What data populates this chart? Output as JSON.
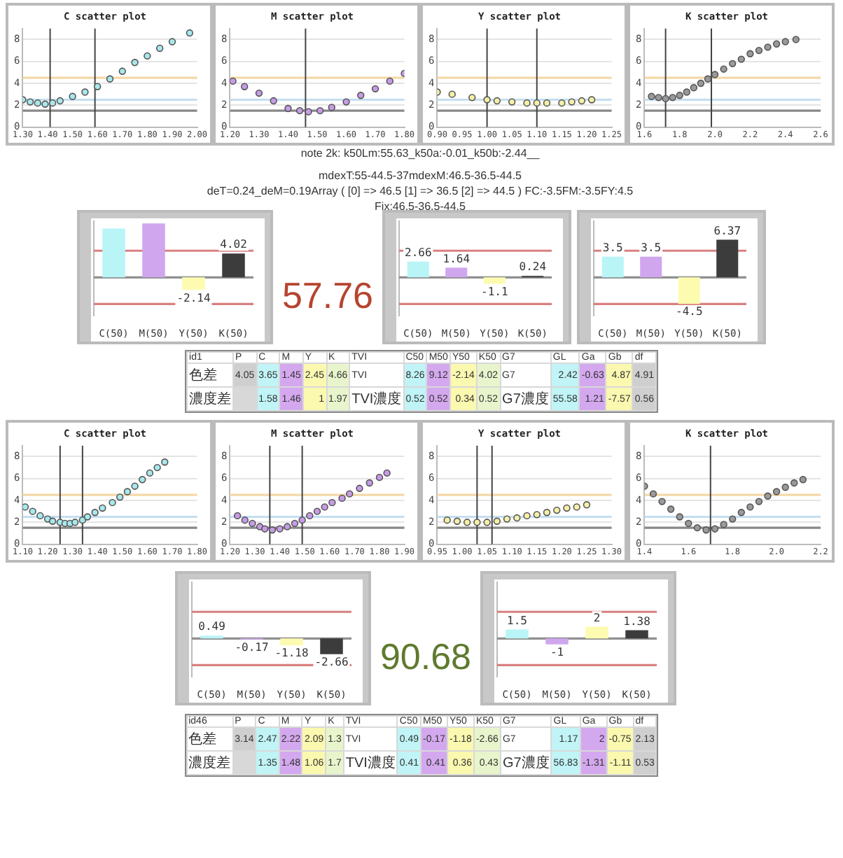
{
  "chart_data": [
    {
      "type": "scatter",
      "title": "C scatter plot",
      "x": [
        1.3,
        1.33,
        1.36,
        1.39,
        1.42,
        1.45,
        1.5,
        1.55,
        1.6,
        1.65,
        1.7,
        1.75,
        1.8,
        1.85,
        1.9,
        1.97
      ],
      "values": [
        2.5,
        2.3,
        2.2,
        2.1,
        2.2,
        2.4,
        2.8,
        3.2,
        3.7,
        4.4,
        5.1,
        5.9,
        6.5,
        7.2,
        7.8,
        8.6
      ],
      "color": "#a8e8ec",
      "marker": "circle",
      "grid": "y",
      "xlim": [
        1.3,
        2.0
      ],
      "xticks": [
        {
          "value": 1.3,
          "label": "1.30"
        },
        {
          "value": 1.4,
          "label": "1.40"
        },
        {
          "value": 1.5,
          "label": "1.50"
        },
        {
          "value": 1.6,
          "label": "1.60"
        },
        {
          "value": 1.7,
          "label": "1.70"
        },
        {
          "value": 1.8,
          "label": "1.80"
        },
        {
          "value": 1.9,
          "label": "1.90"
        },
        {
          "value": 2.0,
          "label": "2.00"
        }
      ],
      "ylim": [
        0,
        9
      ],
      "yticks": [
        0,
        2,
        4,
        6,
        8
      ],
      "ref_lines": [
        {
          "axis": "y",
          "value": 4.5,
          "color": "#f5d9a8"
        },
        {
          "axis": "y",
          "value": 2.5,
          "color": "#c4def0"
        },
        {
          "axis": "y",
          "value": 1.5,
          "color": "#888888"
        },
        {
          "axis": "x",
          "value": 1.41,
          "color": "#444444"
        },
        {
          "axis": "x",
          "value": 1.59,
          "color": "#444444"
        }
      ]
    },
    {
      "type": "scatter",
      "title": "M scatter plot",
      "x": [
        1.21,
        1.25,
        1.3,
        1.35,
        1.4,
        1.44,
        1.47,
        1.51,
        1.55,
        1.6,
        1.65,
        1.7,
        1.75,
        1.8
      ],
      "values": [
        4.2,
        3.7,
        3.1,
        2.4,
        1.7,
        1.5,
        1.4,
        1.5,
        1.8,
        2.3,
        2.9,
        3.5,
        4.2,
        4.9
      ],
      "color": "#c79be6",
      "marker": "circle",
      "grid": "y",
      "xlim": [
        1.2,
        1.8
      ],
      "xticks": [
        {
          "value": 1.2,
          "label": "1.20"
        },
        {
          "value": 1.3,
          "label": "1.30"
        },
        {
          "value": 1.4,
          "label": "1.40"
        },
        {
          "value": 1.5,
          "label": "1.50"
        },
        {
          "value": 1.6,
          "label": "1.60"
        },
        {
          "value": 1.7,
          "label": "1.70"
        },
        {
          "value": 1.8,
          "label": "1.80"
        }
      ],
      "ylim": [
        0,
        9
      ],
      "yticks": [
        0,
        2,
        4,
        6,
        8
      ],
      "ref_lines": [
        {
          "axis": "y",
          "value": 4.5,
          "color": "#f5d9a8"
        },
        {
          "axis": "y",
          "value": 2.5,
          "color": "#c4def0"
        },
        {
          "axis": "y",
          "value": 1.5,
          "color": "#888888"
        },
        {
          "axis": "x",
          "value": 1.46,
          "color": "#444444"
        }
      ]
    },
    {
      "type": "scatter",
      "title": "Y scatter plot",
      "x": [
        0.9,
        0.93,
        0.97,
        1.0,
        1.02,
        1.05,
        1.08,
        1.1,
        1.12,
        1.15,
        1.17,
        1.19,
        1.21
      ],
      "values": [
        3.2,
        3.0,
        2.7,
        2.5,
        2.4,
        2.3,
        2.2,
        2.2,
        2.2,
        2.2,
        2.3,
        2.4,
        2.5
      ],
      "color": "#f5f0a8",
      "marker": "circle",
      "grid": "y",
      "xlim": [
        0.9,
        1.25
      ],
      "xticks": [
        {
          "value": 0.9,
          "label": "0.90"
        },
        {
          "value": 0.95,
          "label": "0.95"
        },
        {
          "value": 1.0,
          "label": "1.00"
        },
        {
          "value": 1.05,
          "label": "1.05"
        },
        {
          "value": 1.1,
          "label": "1.10"
        },
        {
          "value": 1.15,
          "label": "1.15"
        },
        {
          "value": 1.2,
          "label": "1.20"
        },
        {
          "value": 1.25,
          "label": "1.25"
        }
      ],
      "ylim": [
        0,
        9
      ],
      "yticks": [
        0,
        2,
        4,
        6,
        8
      ],
      "ref_lines": [
        {
          "axis": "y",
          "value": 4.5,
          "color": "#f5d9a8"
        },
        {
          "axis": "y",
          "value": 2.5,
          "color": "#c4def0"
        },
        {
          "axis": "y",
          "value": 1.5,
          "color": "#888888"
        },
        {
          "axis": "x",
          "value": 1.0,
          "color": "#444444"
        },
        {
          "axis": "x",
          "value": 1.1,
          "color": "#444444"
        }
      ]
    },
    {
      "type": "scatter",
      "title": "K scatter plot",
      "x": [
        1.64,
        1.68,
        1.72,
        1.76,
        1.8,
        1.84,
        1.88,
        1.92,
        1.96,
        2.0,
        2.05,
        2.1,
        2.15,
        2.2,
        2.25,
        2.3,
        2.35,
        2.4,
        2.46
      ],
      "values": [
        2.8,
        2.7,
        2.6,
        2.7,
        2.9,
        3.2,
        3.6,
        4.0,
        4.4,
        4.8,
        5.3,
        5.8,
        6.2,
        6.7,
        7.0,
        7.3,
        7.6,
        7.8,
        8.0
      ],
      "color": "#9a9a9a",
      "marker": "circle",
      "grid": "y",
      "xlim": [
        1.6,
        2.6
      ],
      "xticks": [
        1.6,
        1.8,
        {
          "value": 2.0,
          "label": "2.0"
        },
        2.2,
        2.4,
        2.6
      ],
      "ylim": [
        0,
        9
      ],
      "yticks": [
        0,
        2,
        4,
        6,
        8
      ],
      "ref_lines": [
        {
          "axis": "y",
          "value": 4.5,
          "color": "#f5d9a8"
        },
        {
          "axis": "y",
          "value": 2.5,
          "color": "#c4def0"
        },
        {
          "axis": "y",
          "value": 1.5,
          "color": "#888888"
        },
        {
          "axis": "x",
          "value": 1.72,
          "color": "#444444"
        },
        {
          "axis": "x",
          "value": 1.98,
          "color": "#444444"
        }
      ]
    },
    {
      "type": "other",
      "annotations": [
        "note 2k: k50Lm:55.63_k50a:-0.01_k50b:-2.44__",
        "mdexT:55-44.5-37mdexM:46.5-36.5-44.5",
        "deT=0.24_deM=0.19Array ( [0] => 46.5 [1] => 36.5 [2] => 44.5 ) FC:-3.5FM:-3.5FY:4.5",
        "Fix:46.5-36.5-44.5"
      ]
    },
    {
      "type": "bar",
      "categories": [
        "C(50)",
        "M(50)",
        "Y(50)",
        "K(50)"
      ],
      "values": [
        8.26,
        9.12,
        -2.14,
        4.02
      ],
      "value_labels": [
        null,
        null,
        "-2.14",
        "4.02"
      ],
      "colors": [
        "#b9f5f7",
        "#d0a6ee",
        "#fdfbb0",
        "#3c3c3c"
      ],
      "ylim": [
        -6.5,
        9.5
      ],
      "tick_labels": "x",
      "ref_lines": [
        {
          "axis": "y",
          "value": 4.5,
          "color": "#d98080"
        },
        {
          "axis": "y",
          "value": -4.5,
          "color": "#d98080"
        },
        {
          "axis": "y",
          "value": 0,
          "color": "#909090"
        }
      ]
    },
    {
      "type": "other",
      "title": "57.76",
      "color": "#b5452f"
    },
    {
      "type": "bar",
      "categories": [
        "C(50)",
        "M(50)",
        "Y(50)",
        "K(50)"
      ],
      "values": [
        2.66,
        1.64,
        -1.1,
        0.24
      ],
      "data_labels": true,
      "colors": [
        "#b9f5f7",
        "#d0a6ee",
        "#fdfbb0",
        "#3c3c3c"
      ],
      "ylim": [
        -6.5,
        9.5
      ],
      "tick_labels": "x",
      "ref_lines": [
        {
          "axis": "y",
          "value": 4.5,
          "color": "#d98080"
        },
        {
          "axis": "y",
          "value": -4.5,
          "color": "#d98080"
        },
        {
          "axis": "y",
          "value": 0,
          "color": "#909090"
        }
      ]
    },
    {
      "type": "bar",
      "categories": [
        "C(50)",
        "M(50)",
        "Y(50)",
        "K(50)"
      ],
      "values": [
        3.5,
        3.5,
        -4.5,
        6.37
      ],
      "data_labels": true,
      "colors": [
        "#b9f5f7",
        "#d0a6ee",
        "#fdfbb0",
        "#3c3c3c"
      ],
      "ylim": [
        -6.5,
        9.5
      ],
      "tick_labels": "x",
      "ref_lines": [
        {
          "axis": "y",
          "value": 4.5,
          "color": "#d98080"
        },
        {
          "axis": "y",
          "value": -4.5,
          "color": "#d98080"
        },
        {
          "axis": "y",
          "value": 0,
          "color": "#909090"
        }
      ]
    },
    {
      "type": "other",
      "categories": [
        "id1",
        "P",
        "C",
        "M",
        "Y",
        "K",
        "TVI",
        "C50",
        "M50",
        "Y50",
        "K50",
        "G7",
        "GL",
        "Ga",
        "Gb",
        "df"
      ],
      "cell_labels": [
        [
          "色差",
          "4.05",
          "3.65",
          "1.45",
          "2.45",
          "4.66",
          "TVI",
          "8.26",
          "9.12",
          "-2.14",
          "4.02",
          "G7",
          "2.42",
          "-0.63",
          "4.87",
          "4.91"
        ],
        [
          "濃度差",
          null,
          "1.58",
          "1.46",
          "1",
          "1.97",
          "TVI濃度",
          "0.52",
          "0.52",
          "0.34",
          "0.52",
          "G7濃度",
          "55.58",
          "1.21",
          "-7.57",
          "0.56"
        ]
      ]
    },
    {
      "type": "scatter",
      "title": "C scatter plot",
      "x": [
        1.11,
        1.14,
        1.17,
        1.2,
        1.22,
        1.25,
        1.27,
        1.29,
        1.31,
        1.34,
        1.36,
        1.39,
        1.42,
        1.46,
        1.49,
        1.52,
        1.55,
        1.58,
        1.61,
        1.64,
        1.67
      ],
      "values": [
        3.4,
        3.0,
        2.6,
        2.3,
        2.1,
        2.0,
        1.9,
        1.9,
        2.0,
        2.2,
        2.5,
        2.9,
        3.3,
        3.8,
        4.3,
        4.8,
        5.3,
        5.9,
        6.5,
        7.0,
        7.5
      ],
      "color": "#a8e8ec",
      "marker": "circle",
      "grid": "y",
      "xlim": [
        1.1,
        1.8
      ],
      "xticks": [
        {
          "value": 1.1,
          "label": "1.10"
        },
        {
          "value": 1.2,
          "label": "1.20"
        },
        {
          "value": 1.3,
          "label": "1.30"
        },
        {
          "value": 1.4,
          "label": "1.40"
        },
        {
          "value": 1.5,
          "label": "1.50"
        },
        {
          "value": 1.6,
          "label": "1.60"
        },
        {
          "value": 1.7,
          "label": "1.70"
        },
        {
          "value": 1.8,
          "label": "1.80"
        }
      ],
      "ylim": [
        0,
        9
      ],
      "yticks": [
        0,
        2,
        4,
        6,
        8
      ],
      "ref_lines": [
        {
          "axis": "y",
          "value": 4.5,
          "color": "#f5d9a8"
        },
        {
          "axis": "y",
          "value": 2.5,
          "color": "#c4def0"
        },
        {
          "axis": "y",
          "value": 1.5,
          "color": "#888888"
        },
        {
          "axis": "x",
          "value": 1.25,
          "color": "#444444"
        },
        {
          "axis": "x",
          "value": 1.34,
          "color": "#444444"
        }
      ]
    },
    {
      "type": "scatter",
      "title": "M scatter plot",
      "x": [
        1.23,
        1.26,
        1.29,
        1.32,
        1.34,
        1.37,
        1.4,
        1.43,
        1.46,
        1.49,
        1.52,
        1.55,
        1.58,
        1.61,
        1.65,
        1.68,
        1.72,
        1.76,
        1.8,
        1.83
      ],
      "values": [
        2.6,
        2.2,
        1.9,
        1.6,
        1.4,
        1.3,
        1.4,
        1.6,
        1.9,
        2.2,
        2.6,
        3.0,
        3.4,
        3.8,
        4.2,
        4.6,
        5.1,
        5.6,
        6.1,
        6.5
      ],
      "color": "#c79be6",
      "marker": "circle",
      "grid": "y",
      "xlim": [
        1.2,
        1.9
      ],
      "xticks": [
        {
          "value": 1.2,
          "label": "1.20"
        },
        {
          "value": 1.3,
          "label": "1.30"
        },
        {
          "value": 1.4,
          "label": "1.40"
        },
        {
          "value": 1.5,
          "label": "1.50"
        },
        {
          "value": 1.6,
          "label": "1.60"
        },
        {
          "value": 1.7,
          "label": "1.70"
        },
        {
          "value": 1.8,
          "label": "1.80"
        },
        {
          "value": 1.9,
          "label": "1.90"
        }
      ],
      "ylim": [
        0,
        9
      ],
      "yticks": [
        0,
        2,
        4,
        6,
        8
      ],
      "ref_lines": [
        {
          "axis": "y",
          "value": 4.5,
          "color": "#f5d9a8"
        },
        {
          "axis": "y",
          "value": 2.5,
          "color": "#c4def0"
        },
        {
          "axis": "y",
          "value": 1.5,
          "color": "#888888"
        },
        {
          "axis": "x",
          "value": 1.36,
          "color": "#444444"
        },
        {
          "axis": "x",
          "value": 1.49,
          "color": "#444444"
        }
      ]
    },
    {
      "type": "scatter",
      "title": "Y scatter plot",
      "x": [
        0.97,
        0.99,
        1.01,
        1.03,
        1.05,
        1.07,
        1.09,
        1.11,
        1.13,
        1.15,
        1.17,
        1.19,
        1.21,
        1.23,
        1.25
      ],
      "values": [
        2.2,
        2.1,
        2.0,
        2.0,
        2.0,
        2.1,
        2.3,
        2.4,
        2.6,
        2.7,
        2.9,
        3.1,
        3.3,
        3.4,
        3.6
      ],
      "color": "#f5f0a8",
      "marker": "circle",
      "grid": "y",
      "xlim": [
        0.95,
        1.3
      ],
      "xticks": [
        {
          "value": 0.95,
          "label": "0.95"
        },
        {
          "value": 1.0,
          "label": "1.00"
        },
        {
          "value": 1.05,
          "label": "1.05"
        },
        {
          "value": 1.1,
          "label": "1.10"
        },
        {
          "value": 1.15,
          "label": "1.15"
        },
        {
          "value": 1.2,
          "label": "1.20"
        },
        {
          "value": 1.25,
          "label": "1.25"
        },
        {
          "value": 1.3,
          "label": "1.30"
        }
      ],
      "ylim": [
        0,
        9
      ],
      "yticks": [
        0,
        2,
        4,
        6,
        8
      ],
      "ref_lines": [
        {
          "axis": "y",
          "value": 4.5,
          "color": "#f5d9a8"
        },
        {
          "axis": "y",
          "value": 2.5,
          "color": "#c4def0"
        },
        {
          "axis": "y",
          "value": 1.5,
          "color": "#888888"
        },
        {
          "axis": "x",
          "value": 1.03,
          "color": "#444444"
        },
        {
          "axis": "x",
          "value": 1.06,
          "color": "#444444"
        }
      ]
    },
    {
      "type": "scatter",
      "title": "K scatter plot",
      "x": [
        1.4,
        1.44,
        1.48,
        1.52,
        1.56,
        1.6,
        1.64,
        1.68,
        1.72,
        1.76,
        1.8,
        1.84,
        1.88,
        1.92,
        1.96,
        2.0,
        2.04,
        2.08,
        2.12
      ],
      "values": [
        5.3,
        4.6,
        3.9,
        3.2,
        2.5,
        1.9,
        1.5,
        1.3,
        1.4,
        1.8,
        2.3,
        2.9,
        3.4,
        3.9,
        4.4,
        4.8,
        5.2,
        5.6,
        5.9
      ],
      "color": "#9a9a9a",
      "marker": "circle",
      "grid": "y",
      "xlim": [
        1.4,
        2.2
      ],
      "xticks": [
        1.4,
        1.6,
        1.8,
        {
          "value": 2.0,
          "label": "2.0"
        },
        2.2
      ],
      "ylim": [
        0,
        9
      ],
      "yticks": [
        0,
        2,
        4,
        6,
        8
      ],
      "ref_lines": [
        {
          "axis": "y",
          "value": 4.5,
          "color": "#f5d9a8"
        },
        {
          "axis": "y",
          "value": 2.5,
          "color": "#c4def0"
        },
        {
          "axis": "y",
          "value": 1.5,
          "color": "#888888"
        },
        {
          "axis": "x",
          "value": 1.7,
          "color": "#444444"
        }
      ]
    },
    {
      "type": "bar",
      "categories": [
        "C(50)",
        "M(50)",
        "Y(50)",
        "K(50)"
      ],
      "values": [
        0.49,
        -0.17,
        -1.18,
        -2.66
      ],
      "data_labels": true,
      "colors": [
        "#b9f5f7",
        "#d0a6ee",
        "#fdfbb0",
        "#3c3c3c"
      ],
      "ylim": [
        -6.5,
        9.5
      ],
      "tick_labels": "x",
      "ref_lines": [
        {
          "axis": "y",
          "value": 4.5,
          "color": "#d98080"
        },
        {
          "axis": "y",
          "value": -4.5,
          "color": "#d98080"
        },
        {
          "axis": "y",
          "value": 0,
          "color": "#909090"
        }
      ]
    },
    {
      "type": "other",
      "title": "90.68",
      "color": "#5f7a2e"
    },
    {
      "type": "bar",
      "categories": [
        "C(50)",
        "M(50)",
        "Y(50)",
        "K(50)"
      ],
      "values": [
        1.5,
        -1,
        2,
        1.38
      ],
      "data_labels": true,
      "colors": [
        "#b9f5f7",
        "#d0a6ee",
        "#fdfbb0",
        "#3c3c3c"
      ],
      "ylim": [
        -6.5,
        9.5
      ],
      "tick_labels": "x",
      "ref_lines": [
        {
          "axis": "y",
          "value": 4.5,
          "color": "#d98080"
        },
        {
          "axis": "y",
          "value": -4.5,
          "color": "#d98080"
        },
        {
          "axis": "y",
          "value": 0,
          "color": "#909090"
        }
      ]
    },
    {
      "type": "other",
      "categories": [
        "id46",
        "P",
        "C",
        "M",
        "Y",
        "K",
        "TVI",
        "C50",
        "M50",
        "Y50",
        "K50",
        "G7",
        "GL",
        "Ga",
        "Gb",
        "df"
      ],
      "cell_labels": [
        [
          "色差",
          "3.14",
          "2.47",
          "2.22",
          "2.09",
          "1.3",
          "TVI",
          "0.49",
          "-0.17",
          "-1.18",
          "-2.66",
          "G7",
          "1.17",
          "2",
          "-0.75",
          "2.13"
        ],
        [
          "濃度差",
          null,
          "1.35",
          "1.48",
          "1.06",
          "1.7",
          "TVI濃度",
          "0.41",
          "0.41",
          "0.36",
          "0.43",
          "G7濃度",
          "56.83",
          "-1.31",
          "-1.11",
          "0.53"
        ]
      ]
    }
  ]
}
